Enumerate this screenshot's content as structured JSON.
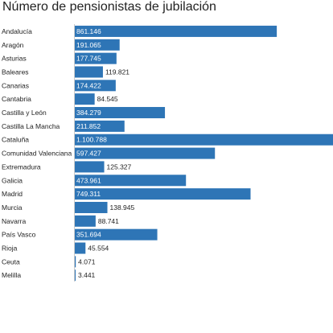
{
  "chart_data": {
    "type": "bar",
    "orientation": "horizontal",
    "title": "Número de pensionistas de jubilación",
    "xlabel": "",
    "ylabel": "",
    "xlim": [
      0,
      1100788
    ],
    "grid": false,
    "legend": "none",
    "bar_color": "#2e75b6",
    "categories": [
      "Andalucía",
      "Aragón",
      "Asturias",
      "Baleares",
      "Canarias",
      "Cantabria",
      "Castilla y León",
      "Castilla La Mancha",
      "Cataluña",
      "Comunidad Valenciana",
      "Extremadura",
      "Galicia",
      "Madrid",
      "Murcia",
      "Navarra",
      "País Vasco",
      "Rioja",
      "Ceuta",
      "Melilla"
    ],
    "values": [
      861146,
      191065,
      177745,
      119821,
      174422,
      84545,
      384279,
      211852,
      1100788,
      597427,
      125327,
      473961,
      749311,
      138945,
      88741,
      351694,
      45554,
      4071,
      3441
    ],
    "value_labels": [
      "861.146",
      "191.065",
      "177.745",
      "119.821",
      "174.422",
      "84.545",
      "384.279",
      "211.852",
      "1.100.788",
      "597.427",
      "125.327",
      "473.961",
      "749.311",
      "138.945",
      "88.741",
      "351.694",
      "45.554",
      "4.071",
      "3.441"
    ]
  }
}
